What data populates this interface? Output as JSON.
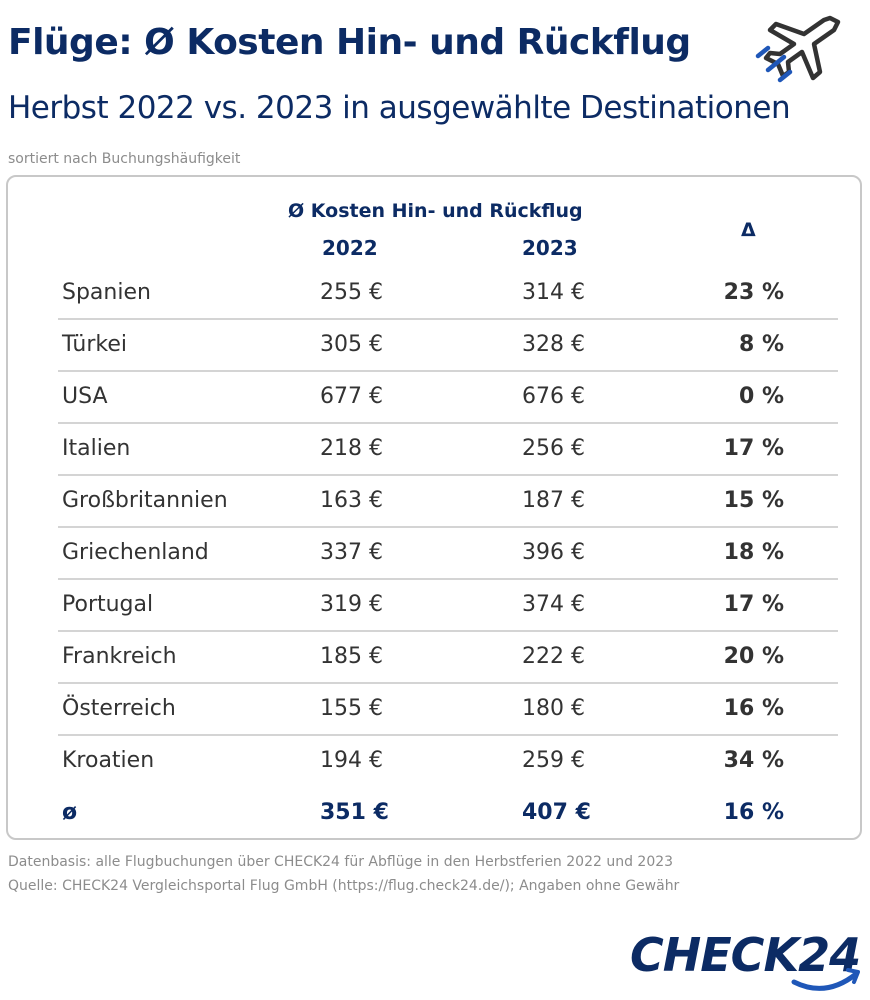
{
  "title": "Flüge: Ø Kosten Hin- und Rückflug",
  "subtitle": "Herbst 2022 vs. 2023 in ausgewählte Destinationen",
  "note": "sortiert nach Buchungshäufigkeit",
  "icon": "airplane-icon",
  "colors": {
    "brand": "#0c2b64",
    "text": "#333333",
    "muted": "#8c8c8c",
    "divider": "#d4d4d4"
  },
  "chart_data": {
    "type": "table",
    "header": {
      "group": "Ø Kosten Hin- und Rückflug",
      "col_2022": "2022",
      "col_2023": "2023",
      "col_delta": "Δ"
    },
    "rows": [
      {
        "country": "Spanien",
        "v2022": "255 €",
        "v2023": "314 €",
        "delta": "23 %"
      },
      {
        "country": "Türkei",
        "v2022": "305 €",
        "v2023": "328 €",
        "delta": "8 %"
      },
      {
        "country": "USA",
        "v2022": "677 €",
        "v2023": "676 €",
        "delta": "0 %"
      },
      {
        "country": "Italien",
        "v2022": "218 €",
        "v2023": "256 €",
        "delta": "17 %"
      },
      {
        "country": "Großbritannien",
        "v2022": "163 €",
        "v2023": "187 €",
        "delta": "15 %"
      },
      {
        "country": "Griechenland",
        "v2022": "337 €",
        "v2023": "396 €",
        "delta": "18 %"
      },
      {
        "country": "Portugal",
        "v2022": "319 €",
        "v2023": "374 €",
        "delta": "17 %"
      },
      {
        "country": "Frankreich",
        "v2022": "185 €",
        "v2023": "222 €",
        "delta": "20 %"
      },
      {
        "country": "Österreich",
        "v2022": "155 €",
        "v2023": "180 €",
        "delta": "16 %"
      },
      {
        "country": "Kroatien",
        "v2022": "194 €",
        "v2023": "259 €",
        "delta": "34 %"
      }
    ],
    "average": {
      "label": "ø",
      "v2022": "351 €",
      "v2023": "407 €",
      "delta": "16 %"
    }
  },
  "footer": {
    "line1": "Datenbasis: alle Flugbuchungen über CHECK24 für Abflüge in den Herbstferien 2022 und 2023",
    "line2": "Quelle: CHECK24 Vergleichsportal Flug GmbH (https://flug.check24.de/); Angaben ohne Gewähr"
  },
  "logo": "CHECK24"
}
